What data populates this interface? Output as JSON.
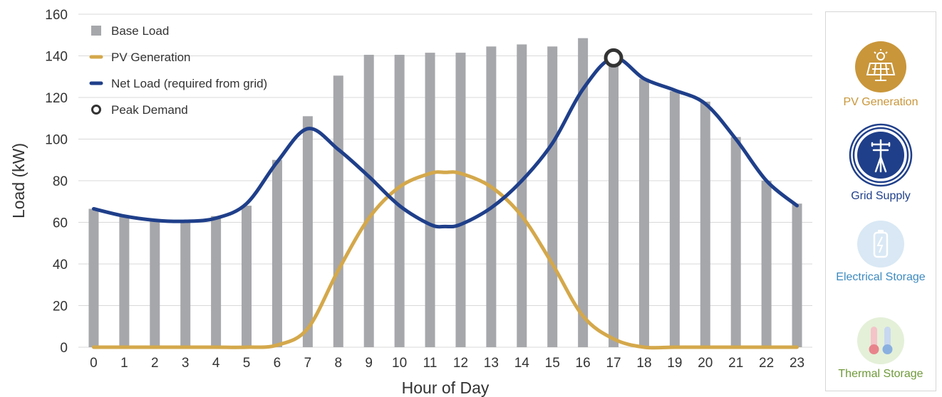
{
  "chart_data": {
    "type": "bar+line",
    "xlabel": "Hour of Day",
    "ylabel": "Load (kW)",
    "ylim": [
      0,
      160
    ],
    "yticks": [
      0,
      20,
      40,
      60,
      80,
      100,
      120,
      140,
      160
    ],
    "categories": [
      "0",
      "1",
      "2",
      "3",
      "4",
      "5",
      "6",
      "7",
      "8",
      "9",
      "10",
      "11",
      "12",
      "13",
      "14",
      "15",
      "16",
      "17",
      "18",
      "19",
      "20",
      "21",
      "22",
      "23"
    ],
    "grid": "horizontal",
    "legend_placement": "top-left",
    "series": [
      {
        "name": "Base Load",
        "type": "bar",
        "color": "#a6a7ab",
        "values": [
          66.5,
          63,
          61,
          61,
          63,
          68,
          90,
          111,
          130.5,
          140.5,
          140.5,
          141.5,
          141.5,
          144.5,
          145.5,
          144.5,
          148.5,
          139,
          129,
          123,
          118,
          101,
          80,
          69
        ]
      },
      {
        "name": "PV Generation",
        "type": "line",
        "color": "#d4a84b",
        "x": [
          0,
          1,
          2,
          3,
          4,
          5,
          6,
          7,
          8,
          9,
          10,
          11,
          11.5,
          12,
          13,
          14,
          15,
          16,
          17,
          18,
          19,
          20,
          21,
          22,
          23
        ],
        "values": [
          0,
          0,
          0,
          0,
          0,
          0,
          1,
          9,
          37,
          62,
          77,
          83.5,
          84,
          83.5,
          77,
          63,
          40,
          15,
          4,
          0,
          0,
          0,
          0,
          0,
          0
        ]
      },
      {
        "name": "Net Load (required from grid)",
        "type": "line",
        "color": "#1f3f8a",
        "x": [
          0,
          1,
          2,
          3,
          4,
          5,
          6,
          7,
          8,
          9,
          10,
          11,
          11.5,
          12,
          13,
          14,
          15,
          16,
          17,
          18,
          19,
          20,
          21,
          22,
          23
        ],
        "values": [
          66.5,
          63,
          61,
          60.5,
          62,
          69,
          89,
          105,
          95,
          82,
          68,
          59,
          58,
          59,
          67,
          80,
          98,
          124,
          139,
          129,
          123.5,
          117,
          100,
          80,
          68
        ]
      }
    ],
    "peak": {
      "name": "Peak Demand",
      "x": 17,
      "y": 139
    }
  },
  "legend": {
    "items": [
      {
        "label": "Base Load",
        "kind": "square",
        "color": "#a6a7ab"
      },
      {
        "label": "PV Generation",
        "kind": "line",
        "color": "#d4a84b"
      },
      {
        "label": "Net Load (required from grid)",
        "kind": "line",
        "color": "#1f3f8a"
      },
      {
        "label": "Peak Demand",
        "kind": "ring",
        "color": "#333333"
      }
    ]
  },
  "panel": {
    "items": [
      {
        "label": "PV Generation",
        "icon": "solar-panel-icon",
        "label_color": "#c9963a",
        "badge_color": "#c9963a",
        "active": true
      },
      {
        "label": "Grid Supply",
        "icon": "power-pole-icon",
        "label_color": "#1f3f8a",
        "badge_color": "#1f3f8a",
        "active": true
      },
      {
        "label": "Electrical Storage",
        "icon": "battery-icon",
        "label_color": "#3d8ac0",
        "badge_color": "#d9e8f4",
        "active": false
      },
      {
        "label": "Thermal Storage",
        "icon": "thermometer-icon",
        "label_color": "#6f9a3a",
        "badge_color": "#e4f0d8",
        "active": false
      }
    ]
  }
}
